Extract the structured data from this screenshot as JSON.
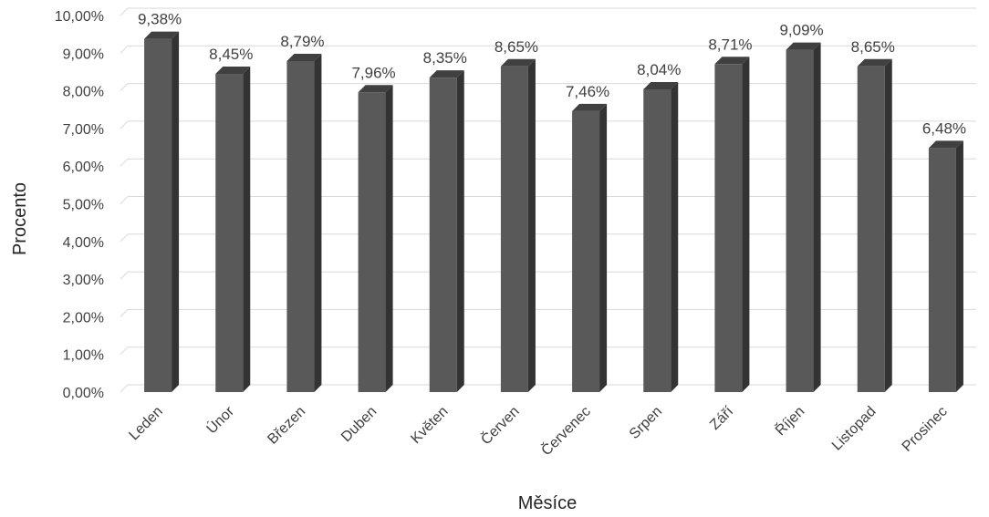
{
  "chart_data": {
    "type": "bar",
    "xlabel": "Měsíce",
    "ylabel": "Procento",
    "categories": [
      "Leden",
      "Únor",
      "Březen",
      "Duben",
      "Květen",
      "Červen",
      "Červenec",
      "Srpen",
      "Září",
      "Říjen",
      "Listopad",
      "Prosinec"
    ],
    "values": [
      9.38,
      8.45,
      8.79,
      7.96,
      8.35,
      8.65,
      7.46,
      8.04,
      8.71,
      9.09,
      8.65,
      6.48
    ],
    "data_labels": [
      "9,38%",
      "8,45%",
      "8,79%",
      "7,96%",
      "8,35%",
      "8,65%",
      "7,46%",
      "8,04%",
      "8,71%",
      "9,09%",
      "8,65%",
      "6,48%"
    ],
    "ylim": [
      0,
      10
    ],
    "yticks": [
      "0,00%",
      "1,00%",
      "2,00%",
      "3,00%",
      "4,00%",
      "5,00%",
      "6,00%",
      "7,00%",
      "8,00%",
      "9,00%",
      "10,00%"
    ],
    "grid": true,
    "bar_color": "#595959",
    "bar_side_color": "#333333",
    "bar_top_color": "#404040",
    "grid_color": "#d9d9d9"
  }
}
